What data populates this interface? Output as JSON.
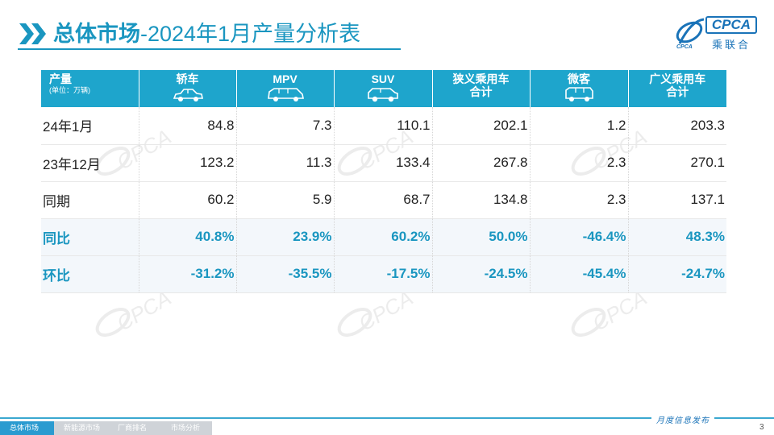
{
  "header": {
    "title_strong": "总体市场",
    "title_rest": "-2024年1月产量分析表"
  },
  "logo": {
    "text": "CPCA",
    "sub": "乘联合"
  },
  "table": {
    "columns": [
      {
        "label": "产量",
        "sub": "(单位：万辆)"
      },
      {
        "label": "轿车",
        "icon": "sedan-icon"
      },
      {
        "label": "MPV",
        "icon": "mpv-icon"
      },
      {
        "label": "SUV",
        "icon": "suv-icon"
      },
      {
        "label": "狭义乘用车",
        "label2": "合计"
      },
      {
        "label": "微客",
        "icon": "minivan-icon"
      },
      {
        "label": "广义乘用车",
        "label2": "合计"
      }
    ],
    "rows": [
      {
        "label": "24年1月",
        "values": [
          "84.8",
          "7.3",
          "110.1",
          "202.1",
          "1.2",
          "203.3"
        ]
      },
      {
        "label": "23年12月",
        "values": [
          "123.2",
          "11.3",
          "133.4",
          "267.8",
          "2.3",
          "270.1"
        ]
      },
      {
        "label": "同期",
        "values": [
          "60.2",
          "5.9",
          "68.7",
          "134.8",
          "2.3",
          "137.1"
        ]
      },
      {
        "label": "同比",
        "values": [
          "40.8%",
          "23.9%",
          "60.2%",
          "50.0%",
          "-46.4%",
          "48.3%"
        ]
      },
      {
        "label": "环比",
        "values": [
          "-31.2%",
          "-35.5%",
          "-17.5%",
          "-24.5%",
          "-45.4%",
          "-24.7%"
        ]
      }
    ]
  },
  "footer": {
    "tabs": [
      "总体市场",
      "新能源市场",
      "厂商排名",
      "市场分析"
    ],
    "right_text": "月度信息发布",
    "page_number": "3"
  },
  "colors": {
    "accent": "#1a96c0",
    "header_bg": "#1ea5cc",
    "logo_blue": "#1a73b8"
  }
}
